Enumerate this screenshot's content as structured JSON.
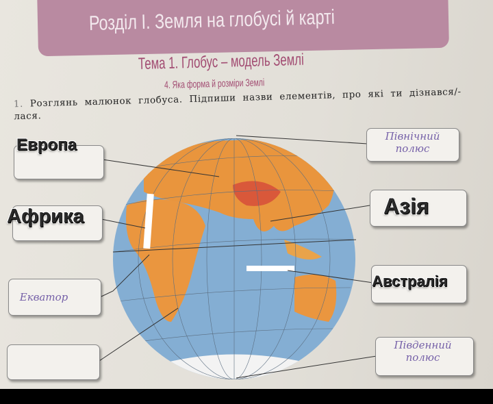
{
  "header": {
    "section_title": "Розділ I. Земля на глобусі й карті",
    "topic_title": "Тема 1. Глобус – модель Землі",
    "lesson_title": "4. Яка форма й розміри Землі"
  },
  "task": {
    "number": "1.",
    "text": "Розглянь малюнок глобуса. Підпиши назви елементів, про які ти дізнався/-лася."
  },
  "labels_left": [
    {
      "stamp": "Европа",
      "handwritten": ""
    },
    {
      "stamp": "Африка",
      "handwritten": ""
    },
    {
      "stamp": "",
      "handwritten": "Екватор"
    },
    {
      "stamp": "",
      "handwritten": ""
    }
  ],
  "labels_right": [
    {
      "stamp": "",
      "handwritten": "Північний полюс"
    },
    {
      "stamp": "Азія",
      "handwritten": ""
    },
    {
      "stamp": "Австралія",
      "handwritten": ""
    },
    {
      "stamp": "",
      "handwritten": "Південний полюс"
    }
  ],
  "colors": {
    "banner": "#b98aa1",
    "heading": "#a24c72",
    "ocean": "#7fa9cf",
    "land": "#e8973f",
    "ink": "#7560a8"
  }
}
